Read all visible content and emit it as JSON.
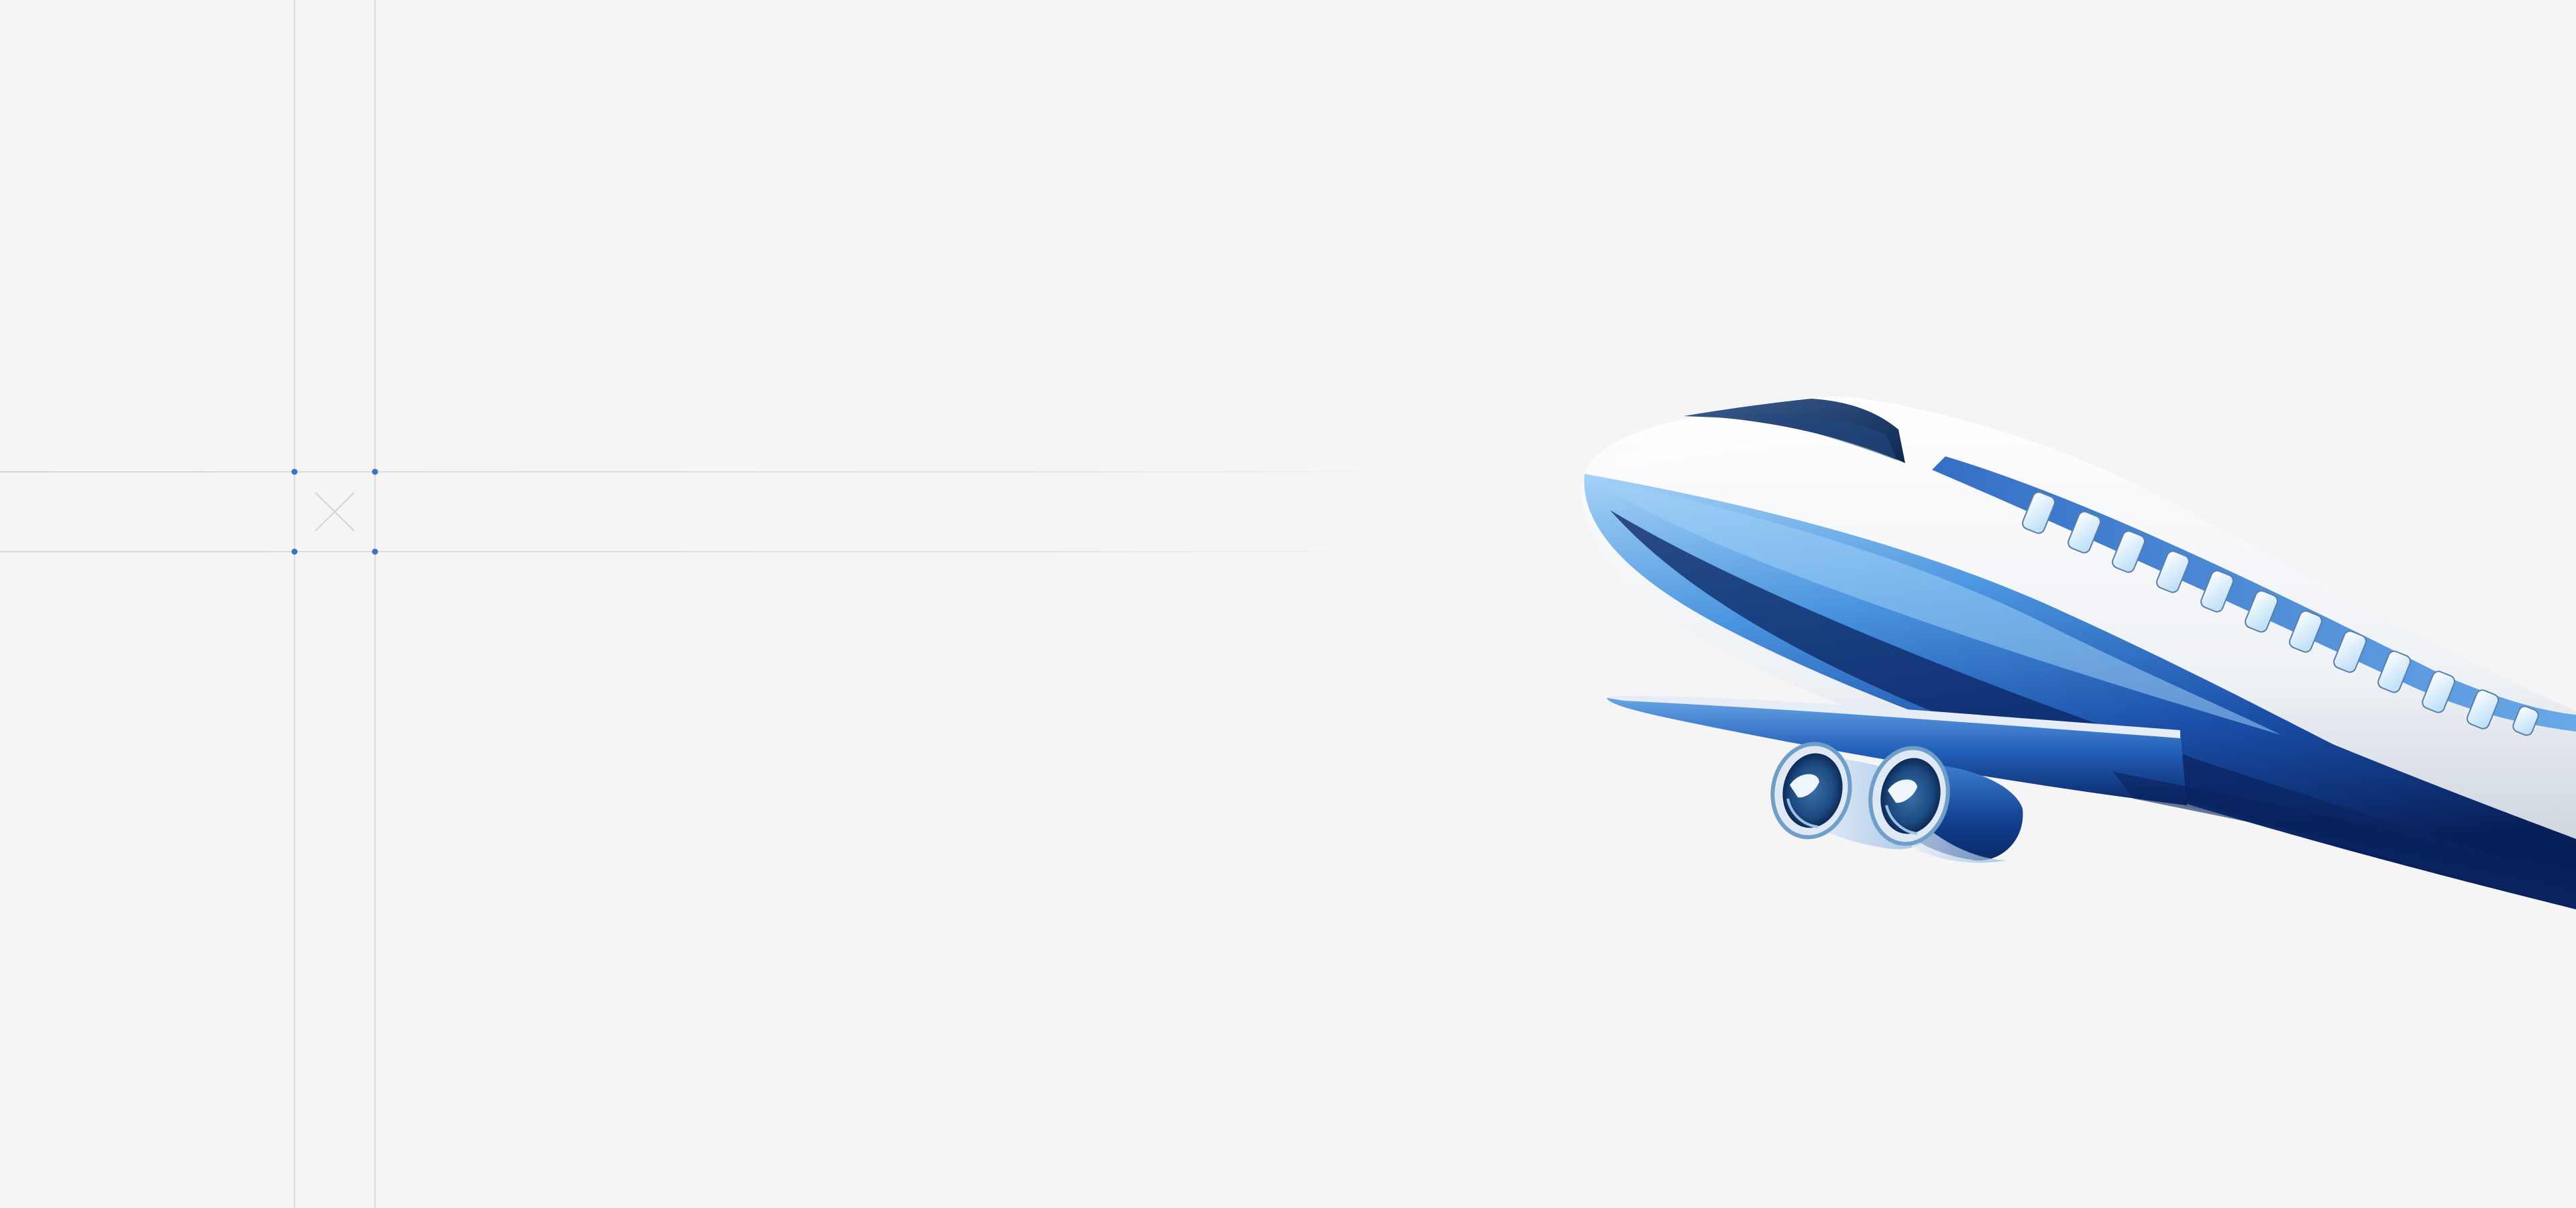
{
  "canvas": {
    "background": "#f5f5f5"
  },
  "colors": {
    "guide_line": "#d6d6d6",
    "guide_handle": "#3a74c8",
    "placeholder_cross": "#d2d2d2",
    "fuselage_white": "#f2f4f7",
    "fuselage_shadow": "#c9d2de",
    "blue_light": "#8cc2f2",
    "blue_mid": "#3a82d6",
    "blue_dark": "#0d2a6b",
    "navy": "#061a48",
    "window": "#d9eefb",
    "engine_ring": "#6f9fc8"
  },
  "icons": {
    "placeholder": "placeholder-x-icon",
    "illustration": "airplane-illustration"
  }
}
